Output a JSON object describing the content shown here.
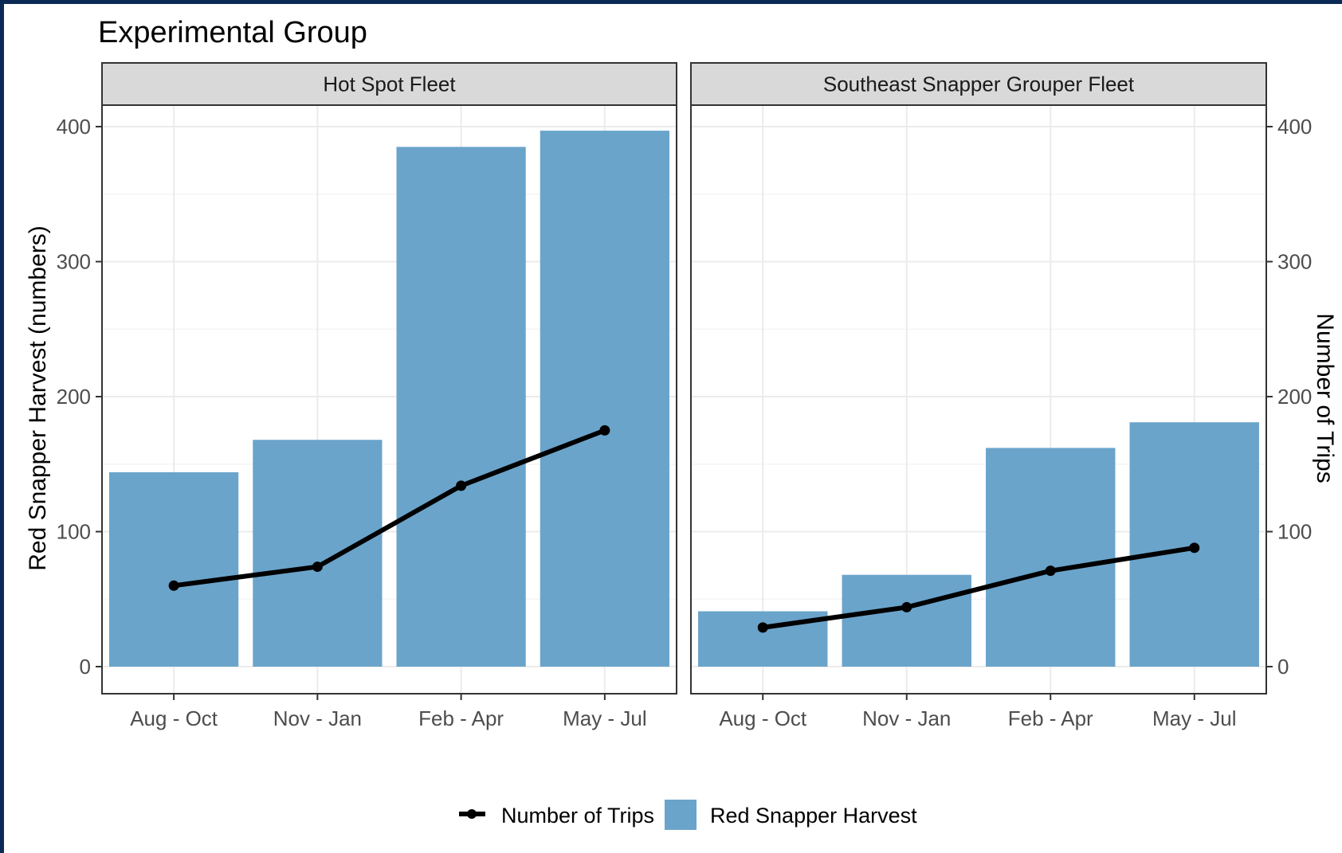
{
  "colors": {
    "bar": "#6aa4cb",
    "line": "#000000",
    "strip": "#d9d9d9",
    "panel_border": "#333333",
    "grid": "#ebebeb",
    "tick_text": "#4d4d4d",
    "page_border": "#0a2a55"
  },
  "chart_data": {
    "type": "bar",
    "title": "Experimental Group",
    "ylabel": "Red Snapper Harvest (numbers)",
    "ylabel_right": "Number of Trips",
    "categories": [
      "Aug - Oct",
      "Nov - Jan",
      "Feb - Apr",
      "May - Jul"
    ],
    "ylim": [
      0,
      400
    ],
    "yticks": [
      "0",
      "100",
      "200",
      "300",
      "400"
    ],
    "grid": true,
    "legend_position": "bottom",
    "legend": {
      "line_label": "Number of Trips",
      "bar_label": "Red Snapper Harvest"
    },
    "panels": [
      {
        "name": "Hot Spot Fleet",
        "series": [
          {
            "name": "Red Snapper Harvest",
            "type": "bar",
            "values": [
              144,
              168,
              385,
              397
            ]
          },
          {
            "name": "Number of Trips",
            "type": "line",
            "values": [
              60,
              74,
              134,
              175
            ]
          }
        ]
      },
      {
        "name": "Southeast Snapper Grouper Fleet",
        "series": [
          {
            "name": "Red Snapper Harvest",
            "type": "bar",
            "values": [
              41,
              68,
              162,
              181
            ]
          },
          {
            "name": "Number of Trips",
            "type": "line",
            "values": [
              29,
              44,
              71,
              88
            ]
          }
        ]
      }
    ]
  }
}
